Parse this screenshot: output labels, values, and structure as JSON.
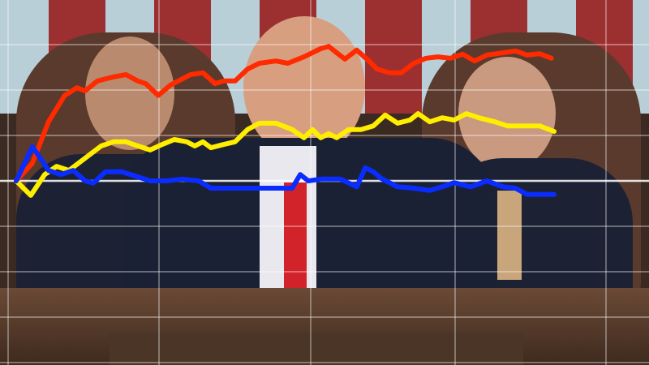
{
  "chart_data": {
    "type": "line",
    "title": "",
    "xlabel": "",
    "ylabel": "",
    "xlim": [
      0,
      100
    ],
    "ylim": [
      -4,
      4
    ],
    "grid": true,
    "legend": "none",
    "series": [
      {
        "color": "#ff2a00",
        "points": [
          [
            0,
            0
          ],
          [
            3,
            0.39
          ],
          [
            6,
            1.3
          ],
          [
            9,
            1.88
          ],
          [
            11.3,
            2.05
          ],
          [
            12.8,
            1.98
          ],
          [
            15.1,
            2.2
          ],
          [
            18.1,
            2.29
          ],
          [
            20.4,
            2.34
          ],
          [
            22.6,
            2.2
          ],
          [
            24.1,
            2.14
          ],
          [
            26.4,
            1.88
          ],
          [
            28.7,
            2.11
          ],
          [
            32.4,
            2.34
          ],
          [
            34.7,
            2.38
          ],
          [
            37,
            2.14
          ],
          [
            38.5,
            2.2
          ],
          [
            40.7,
            2.2
          ],
          [
            43,
            2.46
          ],
          [
            45.2,
            2.59
          ],
          [
            48.3,
            2.64
          ],
          [
            50.5,
            2.59
          ],
          [
            53.5,
            2.73
          ],
          [
            56.6,
            2.91
          ],
          [
            58.1,
            2.96
          ],
          [
            59.6,
            2.82
          ],
          [
            61.1,
            2.68
          ],
          [
            63.3,
            2.88
          ],
          [
            65.6,
            2.64
          ],
          [
            67.1,
            2.46
          ],
          [
            69.4,
            2.38
          ],
          [
            71.6,
            2.38
          ],
          [
            73.9,
            2.59
          ],
          [
            76.2,
            2.7
          ],
          [
            78.4,
            2.73
          ],
          [
            80.7,
            2.7
          ],
          [
            83,
            2.79
          ],
          [
            85.2,
            2.64
          ],
          [
            87.5,
            2.77
          ],
          [
            90.5,
            2.82
          ],
          [
            92.8,
            2.86
          ],
          [
            95,
            2.77
          ],
          [
            97.3,
            2.8
          ],
          [
            99.5,
            2.7
          ]
        ]
      },
      {
        "color": "#ffee00",
        "points": [
          [
            0,
            0
          ],
          [
            2.7,
            -0.32
          ],
          [
            5.3,
            0.14
          ],
          [
            7.5,
            0.32
          ],
          [
            9.8,
            0.23
          ],
          [
            12.8,
            0.5
          ],
          [
            15.8,
            0.77
          ],
          [
            18.1,
            0.86
          ],
          [
            20.4,
            0.86
          ],
          [
            22.6,
            0.77
          ],
          [
            24.9,
            0.68
          ],
          [
            27.1,
            0.8
          ],
          [
            29.4,
            0.91
          ],
          [
            31.7,
            0.86
          ],
          [
            33.2,
            0.77
          ],
          [
            34.7,
            0.86
          ],
          [
            36.2,
            0.73
          ],
          [
            38.5,
            0.8
          ],
          [
            40.7,
            0.86
          ],
          [
            43,
            1.13
          ],
          [
            45.2,
            1.27
          ],
          [
            48.3,
            1.27
          ],
          [
            51.3,
            1.13
          ],
          [
            53.5,
            0.95
          ],
          [
            55.1,
            1.13
          ],
          [
            56.6,
            0.95
          ],
          [
            58.1,
            1.04
          ],
          [
            59.6,
            0.95
          ],
          [
            61.8,
            1.13
          ],
          [
            64.1,
            1.13
          ],
          [
            66.4,
            1.21
          ],
          [
            68.6,
            1.45
          ],
          [
            70.9,
            1.27
          ],
          [
            73.2,
            1.34
          ],
          [
            74.7,
            1.48
          ],
          [
            76.9,
            1.3
          ],
          [
            79.2,
            1.39
          ],
          [
            81.4,
            1.34
          ],
          [
            83.7,
            1.48
          ],
          [
            86,
            1.39
          ],
          [
            89,
            1.3
          ],
          [
            91.3,
            1.21
          ],
          [
            94.3,
            1.21
          ],
          [
            97.3,
            1.21
          ],
          [
            100,
            1.09
          ]
        ]
      },
      {
        "color": "#0a2cff",
        "points": [
          [
            0,
            0
          ],
          [
            3,
            0.75
          ],
          [
            4.5,
            0.5
          ],
          [
            6,
            0.23
          ],
          [
            8.3,
            0.14
          ],
          [
            10.6,
            0.23
          ],
          [
            12.8,
            0
          ],
          [
            14.3,
            -0.05
          ],
          [
            16.6,
            0.2
          ],
          [
            19.6,
            0.2
          ],
          [
            22.6,
            0.09
          ],
          [
            24.9,
            0
          ],
          [
            27.9,
            0
          ],
          [
            30.9,
            0.04
          ],
          [
            33.9,
            0
          ],
          [
            36.2,
            -0.16
          ],
          [
            38.5,
            -0.16
          ],
          [
            42.2,
            -0.16
          ],
          [
            45.2,
            -0.16
          ],
          [
            48.3,
            -0.16
          ],
          [
            51.3,
            -0.16
          ],
          [
            52.8,
            0.14
          ],
          [
            54.3,
            0
          ],
          [
            56.6,
            0.04
          ],
          [
            60.3,
            0.04
          ],
          [
            63.3,
            -0.13
          ],
          [
            64.9,
            0.29
          ],
          [
            66.4,
            0.2
          ],
          [
            67.9,
            0.05
          ],
          [
            70.9,
            -0.13
          ],
          [
            73.9,
            -0.16
          ],
          [
            76.9,
            -0.21
          ],
          [
            79.2,
            -0.13
          ],
          [
            81.4,
            -0.04
          ],
          [
            84.5,
            -0.13
          ],
          [
            87.5,
            0
          ],
          [
            90.5,
            -0.13
          ],
          [
            92.8,
            -0.16
          ],
          [
            95,
            -0.3
          ],
          [
            97.3,
            -0.3
          ],
          [
            100,
            -0.3
          ]
        ]
      }
    ]
  }
}
